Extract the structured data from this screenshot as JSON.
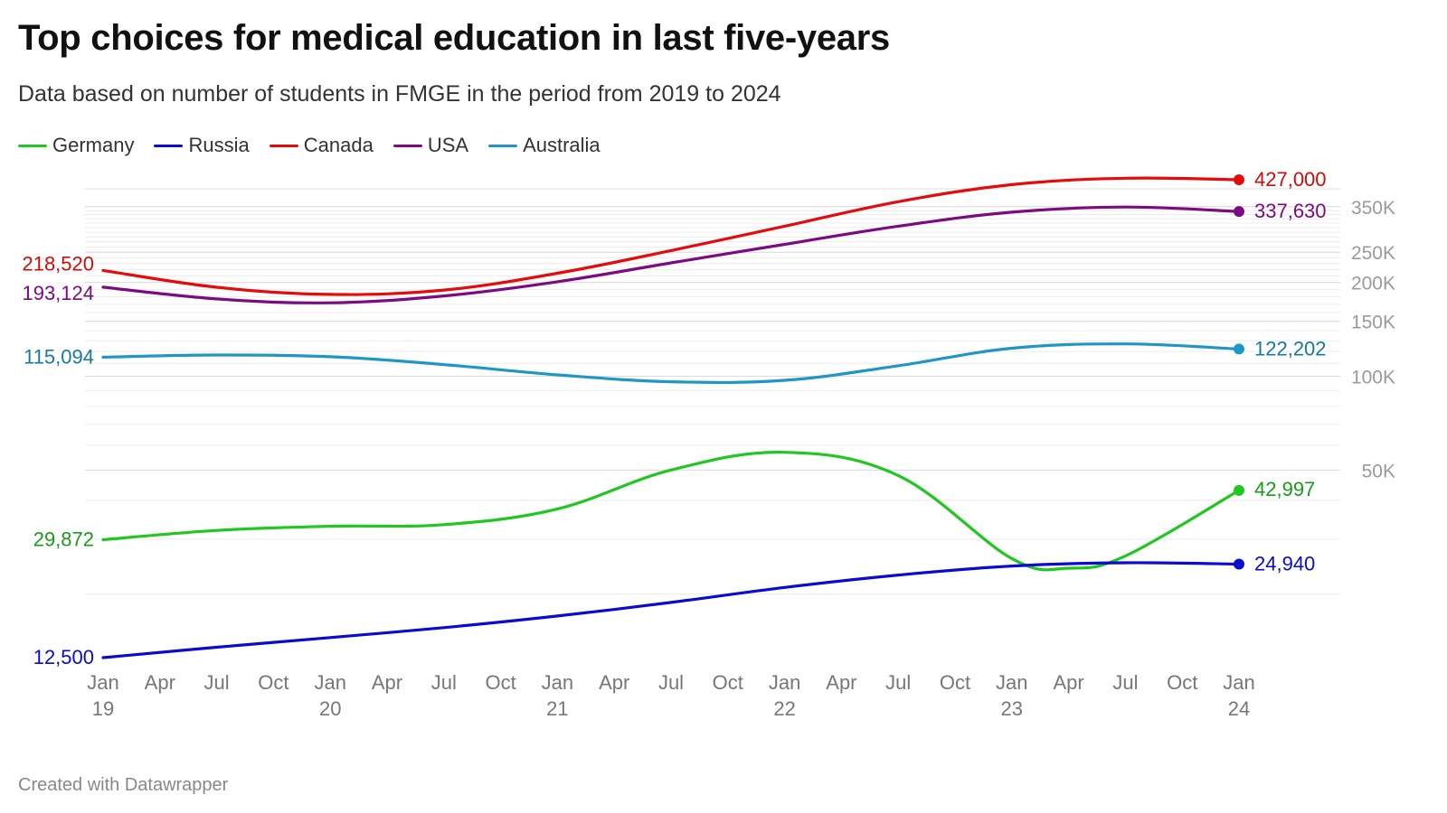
{
  "title": "Top choices for medical education in last five-years",
  "subtitle": "Data based on number of students in FMGE in the period from 2019 to 2024",
  "footer": "Created with Datawrapper",
  "chart_data": {
    "type": "line",
    "title": "Top choices for medical education in last five-years",
    "subtitle": "Data based on number of students in FMGE in the period from 2019 to 2024",
    "yscale": "log",
    "ylim": [
      12500,
      427000
    ],
    "x": [
      "2019-01",
      "2019-04",
      "2019-07",
      "2019-10",
      "2020-01",
      "2020-04",
      "2020-07",
      "2020-10",
      "2021-01",
      "2021-04",
      "2021-07",
      "2021-10",
      "2022-01",
      "2022-04",
      "2022-07",
      "2022-10",
      "2023-01",
      "2023-04",
      "2023-07",
      "2023-10",
      "2024-01"
    ],
    "x_ticks": [
      {
        "label": "Jan",
        "year": "19"
      },
      {
        "label": "Apr",
        "year": ""
      },
      {
        "label": "Jul",
        "year": ""
      },
      {
        "label": "Oct",
        "year": ""
      },
      {
        "label": "Jan",
        "year": "20"
      },
      {
        "label": "Apr",
        "year": ""
      },
      {
        "label": "Jul",
        "year": ""
      },
      {
        "label": "Oct",
        "year": ""
      },
      {
        "label": "Jan",
        "year": "21"
      },
      {
        "label": "Apr",
        "year": ""
      },
      {
        "label": "Jul",
        "year": ""
      },
      {
        "label": "Oct",
        "year": ""
      },
      {
        "label": "Jan",
        "year": "22"
      },
      {
        "label": "Apr",
        "year": ""
      },
      {
        "label": "Jul",
        "year": ""
      },
      {
        "label": "Oct",
        "year": ""
      },
      {
        "label": "Jan",
        "year": "23"
      },
      {
        "label": "Apr",
        "year": ""
      },
      {
        "label": "Jul",
        "year": ""
      },
      {
        "label": "Oct",
        "year": ""
      },
      {
        "label": "Jan",
        "year": "24"
      }
    ],
    "y_ticks": [
      {
        "value": 350000,
        "label": "350K"
      },
      {
        "value": 250000,
        "label": "250K"
      },
      {
        "value": 200000,
        "label": "200K"
      },
      {
        "value": 150000,
        "label": "150K"
      },
      {
        "value": 100000,
        "label": "100K"
      },
      {
        "value": 50000,
        "label": "50K"
      }
    ],
    "series": [
      {
        "name": "Germany",
        "color": "#1ec81e",
        "label_color": "#189b18",
        "start_label": "29,872",
        "end_label": "42,997",
        "points": [
          [
            0,
            29872
          ],
          [
            2,
            32000
          ],
          [
            4,
            33000
          ],
          [
            6,
            33400
          ],
          [
            8,
            37500
          ],
          [
            10,
            50000
          ],
          [
            12,
            57000
          ],
          [
            14,
            48000
          ],
          [
            16,
            26000
          ],
          [
            17,
            24200
          ],
          [
            18,
            26500
          ],
          [
            20,
            42997
          ]
        ]
      },
      {
        "name": "Russia",
        "color": "#0a0ad2",
        "label_color": "#0a0ad2",
        "start_label": "12,500",
        "end_label": "24,940",
        "points": [
          [
            0,
            12500
          ],
          [
            2,
            13500
          ],
          [
            4,
            14500
          ],
          [
            6,
            15600
          ],
          [
            8,
            17000
          ],
          [
            10,
            18800
          ],
          [
            12,
            21000
          ],
          [
            14,
            23000
          ],
          [
            16,
            24600
          ],
          [
            18,
            25200
          ],
          [
            20,
            24940
          ]
        ]
      },
      {
        "name": "Canada",
        "color": "#e60a0a",
        "label_color": "#d20a0a",
        "start_label": "218,520",
        "end_label": "427,000",
        "points": [
          [
            0,
            218520
          ],
          [
            2,
            193000
          ],
          [
            4,
            183000
          ],
          [
            6,
            189000
          ],
          [
            8,
            214000
          ],
          [
            10,
            253000
          ],
          [
            12,
            303000
          ],
          [
            14,
            363000
          ],
          [
            16,
            412000
          ],
          [
            18,
            432000
          ],
          [
            20,
            427000
          ]
        ]
      },
      {
        "name": "USA",
        "color": "#7d0a82",
        "label_color": "#7d0a82",
        "start_label": "193,124",
        "end_label": "337,630",
        "points": [
          [
            0,
            193124
          ],
          [
            2,
            177000
          ],
          [
            4,
            172000
          ],
          [
            6,
            181000
          ],
          [
            8,
            201000
          ],
          [
            10,
            231000
          ],
          [
            12,
            265000
          ],
          [
            14,
            303000
          ],
          [
            16,
            336000
          ],
          [
            18,
            349000
          ],
          [
            20,
            337630
          ]
        ]
      },
      {
        "name": "Australia",
        "color": "#1e96c8",
        "label_color": "#19789f",
        "start_label": "115,094",
        "end_label": "122,202",
        "points": [
          [
            0,
            115094
          ],
          [
            2,
            117000
          ],
          [
            4,
            115500
          ],
          [
            6,
            109000
          ],
          [
            8,
            101000
          ],
          [
            10,
            96000
          ],
          [
            12,
            97000
          ],
          [
            14,
            108000
          ],
          [
            16,
            123000
          ],
          [
            18,
            127000
          ],
          [
            20,
            122202
          ]
        ]
      }
    ]
  }
}
